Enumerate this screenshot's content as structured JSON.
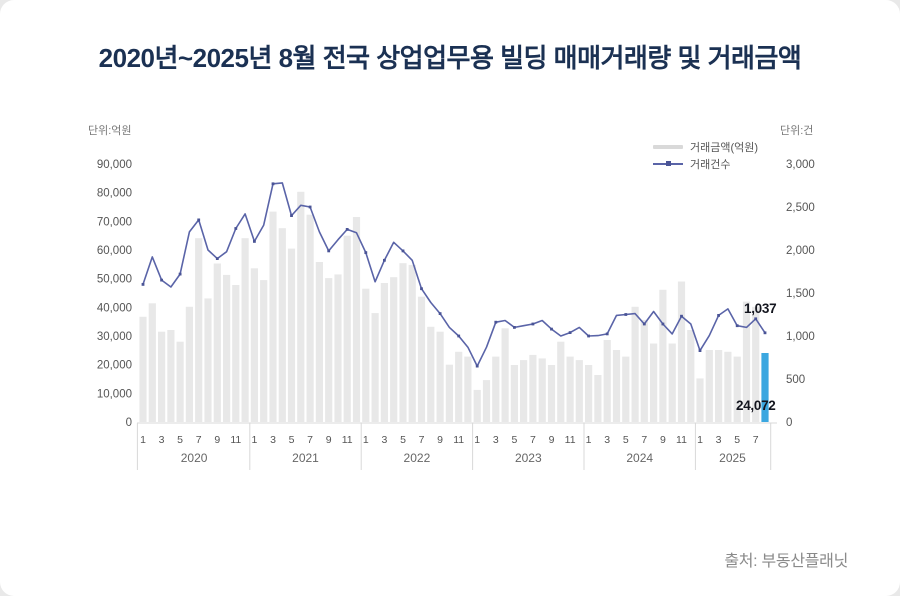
{
  "title": "2020년~2025년 8월 전국 상업업무용 빌딩 매매거래량 및 거래금액",
  "source": "출처: 부동산플래닛",
  "axes": {
    "left_unit": "단위:억원",
    "right_unit": "단위:건",
    "left_ticks": [
      "90,000",
      "80,000",
      "70,000",
      "60,000",
      "50,000",
      "40,000",
      "30,000",
      "20,000",
      "10,000",
      "0"
    ],
    "right_ticks": [
      "3,000",
      "2,500",
      "2,000",
      "1,500",
      "1,000",
      "500",
      "0"
    ]
  },
  "legend": [
    {
      "label": "거래금액(억원)",
      "swatch": "gray-bar-swatch"
    },
    {
      "label": "거래건수",
      "swatch": "blue-line-swatch"
    }
  ],
  "annotations": {
    "last_line_value": "1,037",
    "last_bar_value": "24,072"
  },
  "colors": {
    "bar": "#e8e8e8",
    "highlight_bar": "#3ba7e0",
    "line": "#5a64a8",
    "marker": "#4a5496",
    "axis_line": "#d8d8d8",
    "tick_text": "#555555",
    "year_text": "#666666",
    "title_text": "#1b3153"
  },
  "chart_data": {
    "type": "bar+line",
    "title": "2020년~2025년 8월 전국 상업업무용 빌딩 매매거래량 및 거래금액",
    "left_axis": {
      "label": "단위:억원",
      "min": 0,
      "max": 90000,
      "step": 10000
    },
    "right_axis": {
      "label": "단위:건",
      "min": 0,
      "max": 3000,
      "step": 500
    },
    "x_years": [
      {
        "year": "2020",
        "start": 0,
        "months": [
          "1",
          "3",
          "5",
          "7",
          "9",
          "11"
        ]
      },
      {
        "year": "2021",
        "start": 12,
        "months": [
          "1",
          "3",
          "5",
          "7",
          "9",
          "11"
        ]
      },
      {
        "year": "2022",
        "start": 24,
        "months": [
          "1",
          "3",
          "5",
          "7",
          "9",
          "11"
        ]
      },
      {
        "year": "2023",
        "start": 36,
        "months": [
          "1",
          "3",
          "5",
          "7",
          "9",
          "11"
        ]
      },
      {
        "year": "2024",
        "start": 48,
        "months": [
          "1",
          "3",
          "5",
          "7",
          "9",
          "11"
        ]
      },
      {
        "year": "2025",
        "start": 60,
        "months": [
          "1",
          "3",
          "5",
          "7"
        ]
      }
    ],
    "series": [
      {
        "name": "거래금액(억원)",
        "type": "bar",
        "axis": "left",
        "values": [
          36700,
          41400,
          31500,
          32100,
          28000,
          40200,
          64100,
          43100,
          55300,
          51300,
          47800,
          64100,
          53600,
          49500,
          73400,
          67600,
          60500,
          80300,
          72300,
          55800,
          50200,
          51500,
          65000,
          71500,
          46500,
          38000,
          48500,
          50500,
          55400,
          54800,
          43700,
          33200,
          31500,
          20000,
          24500,
          22800,
          11200,
          14600,
          22800,
          32700,
          19900,
          21600,
          23400,
          22200,
          19900,
          28000,
          22800,
          21600,
          19900,
          16400,
          28600,
          25100,
          22800,
          40200,
          35600,
          27400,
          46100,
          27400,
          49000,
          32100,
          15200,
          25100,
          25100,
          24500,
          22800,
          42000,
          40200,
          24072
        ]
      },
      {
        "name": "거래건수",
        "type": "line",
        "axis": "right",
        "values": [
          1600,
          1920,
          1650,
          1570,
          1720,
          2210,
          2350,
          2000,
          1900,
          1980,
          2250,
          2420,
          2100,
          2290,
          2770,
          2780,
          2400,
          2520,
          2500,
          2210,
          1990,
          2120,
          2240,
          2200,
          1970,
          1630,
          1880,
          2090,
          1990,
          1880,
          1550,
          1390,
          1260,
          1100,
          1000,
          870,
          650,
          870,
          1160,
          1180,
          1100,
          1120,
          1140,
          1180,
          1080,
          1000,
          1040,
          1100,
          1000,
          1005,
          1025,
          1240,
          1250,
          1260,
          1140,
          1285,
          1140,
          1025,
          1230,
          1140,
          830,
          1005,
          1240,
          1315,
          1120,
          1100,
          1200,
          1037
        ]
      }
    ],
    "highlight_last_bar": true,
    "grid": false,
    "legend_position": "top-right"
  }
}
